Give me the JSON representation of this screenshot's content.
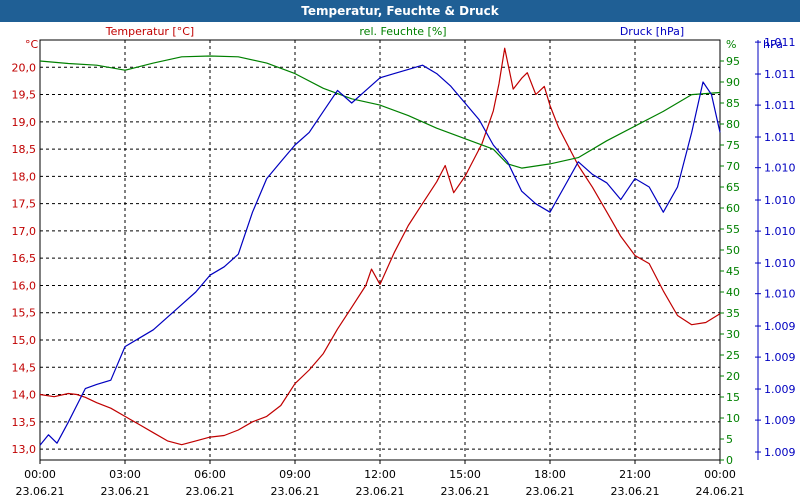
{
  "window": {
    "title": "Temperatur, Feuchte & Druck"
  },
  "colors": {
    "temperature": "#c00000",
    "humidity": "#008000",
    "pressure": "#0000c0",
    "grid": "#000000"
  },
  "chart_data": {
    "type": "line",
    "title": "Temperatur, Feuchte & Druck",
    "legend_position": "top",
    "x_ticks": [
      {
        "time": "00:00",
        "date": "23.06.21"
      },
      {
        "time": "03:00",
        "date": "23.06.21"
      },
      {
        "time": "06:00",
        "date": "23.06.21"
      },
      {
        "time": "09:00",
        "date": "23.06.21"
      },
      {
        "time": "12:00",
        "date": "23.06.21"
      },
      {
        "time": "15:00",
        "date": "23.06.21"
      },
      {
        "time": "18:00",
        "date": "23.06.21"
      },
      {
        "time": "21:00",
        "date": "23.06.21"
      },
      {
        "time": "00:00",
        "date": "24.06.21"
      }
    ],
    "x_range_hours": [
      0,
      24
    ],
    "axes": {
      "temperature": {
        "label": "Temperatur [°C]",
        "unit": "°C",
        "range": [
          12.8,
          20.5
        ],
        "ticks": [
          "13,0",
          "13,5",
          "14,0",
          "14,5",
          "15,0",
          "15,5",
          "16,0",
          "16,5",
          "17,0",
          "17,5",
          "18,0",
          "18,5",
          "19,0",
          "19,5",
          "20,0"
        ],
        "tick_values": [
          13.0,
          13.5,
          14.0,
          14.5,
          15.0,
          15.5,
          16.0,
          16.5,
          17.0,
          17.5,
          18.0,
          18.5,
          19.0,
          19.5,
          20.0
        ]
      },
      "humidity": {
        "label": "rel. Feuchte [%]",
        "unit": "%",
        "range": [
          0,
          100
        ],
        "ticks": [
          "0",
          "5",
          "10",
          "15",
          "20",
          "25",
          "30",
          "35",
          "40",
          "45",
          "50",
          "55",
          "60",
          "65",
          "70",
          "75",
          "80",
          "85",
          "90",
          "95"
        ],
        "tick_values": [
          0,
          5,
          10,
          15,
          20,
          25,
          30,
          35,
          40,
          45,
          50,
          55,
          60,
          65,
          70,
          75,
          80,
          85,
          90,
          95
        ]
      },
      "pressure": {
        "label": "Druck [hPa]",
        "unit": "hPa",
        "range": [
          0,
          100
        ],
        "ticks": [
          "1.009",
          "1.009",
          "1.009",
          "1.009",
          "1.009",
          "1.010",
          "1.010",
          "1.010",
          "1.010",
          "1.010",
          "1.011",
          "1.011",
          "1.011",
          "1.011"
        ],
        "tick_positions": [
          1.9,
          9.5,
          16.9,
          24.5,
          31.9,
          39.6,
          46.9,
          54.5,
          61.9,
          69.6,
          76.9,
          84.5,
          91.9,
          99.5
        ]
      }
    },
    "series": [
      {
        "name": "Temperatur [°C]",
        "axis": "temperature",
        "color": "#c00000",
        "points": [
          [
            0,
            14.0
          ],
          [
            0.5,
            13.96
          ],
          [
            1,
            14.02
          ],
          [
            1.3,
            14.0
          ],
          [
            1.6,
            13.95
          ],
          [
            2,
            13.85
          ],
          [
            2.5,
            13.75
          ],
          [
            3,
            13.6
          ],
          [
            3.5,
            13.45
          ],
          [
            4,
            13.3
          ],
          [
            4.5,
            13.15
          ],
          [
            5,
            13.08
          ],
          [
            5.5,
            13.15
          ],
          [
            6,
            13.22
          ],
          [
            6.5,
            13.25
          ],
          [
            7,
            13.35
          ],
          [
            7.5,
            13.5
          ],
          [
            8,
            13.6
          ],
          [
            8.5,
            13.8
          ],
          [
            9,
            14.2
          ],
          [
            9.5,
            14.45
          ],
          [
            10,
            14.75
          ],
          [
            10.5,
            15.2
          ],
          [
            11,
            15.6
          ],
          [
            11.5,
            16.0
          ],
          [
            11.7,
            16.3
          ],
          [
            12,
            16.02
          ],
          [
            12.5,
            16.6
          ],
          [
            13,
            17.1
          ],
          [
            13.5,
            17.5
          ],
          [
            14,
            17.9
          ],
          [
            14.3,
            18.2
          ],
          [
            14.6,
            17.7
          ],
          [
            15,
            18.0
          ],
          [
            15.3,
            18.3
          ],
          [
            15.6,
            18.6
          ],
          [
            16,
            19.2
          ],
          [
            16.2,
            19.7
          ],
          [
            16.4,
            20.35
          ],
          [
            16.7,
            19.6
          ],
          [
            17,
            19.8
          ],
          [
            17.2,
            19.9
          ],
          [
            17.5,
            19.5
          ],
          [
            17.8,
            19.65
          ],
          [
            18,
            19.3
          ],
          [
            18.3,
            18.9
          ],
          [
            18.7,
            18.5
          ],
          [
            19,
            18.2
          ],
          [
            19.5,
            17.8
          ],
          [
            20,
            17.35
          ],
          [
            20.5,
            16.9
          ],
          [
            21,
            16.55
          ],
          [
            21.5,
            16.4
          ],
          [
            22,
            15.9
          ],
          [
            22.5,
            15.45
          ],
          [
            23,
            15.28
          ],
          [
            23.5,
            15.32
          ],
          [
            24,
            15.48
          ]
        ]
      },
      {
        "name": "rel. Feuchte [%]",
        "axis": "humidity",
        "color": "#008000",
        "points": [
          [
            0,
            95
          ],
          [
            1,
            94.4
          ],
          [
            2,
            94
          ],
          [
            3,
            92.8
          ],
          [
            4,
            94.5
          ],
          [
            5,
            96
          ],
          [
            6,
            96.2
          ],
          [
            7,
            96
          ],
          [
            8,
            94.5
          ],
          [
            9,
            92
          ],
          [
            10,
            88.5
          ],
          [
            11,
            86
          ],
          [
            12,
            84.5
          ],
          [
            13,
            82
          ],
          [
            14,
            79
          ],
          [
            15,
            76.5
          ],
          [
            16,
            74
          ],
          [
            16.5,
            70.5
          ],
          [
            17,
            69.5
          ],
          [
            18,
            70.5
          ],
          [
            19,
            72
          ],
          [
            20,
            76
          ],
          [
            21,
            79.5
          ],
          [
            22,
            83
          ],
          [
            23,
            87
          ],
          [
            24,
            87.5
          ]
        ]
      },
      {
        "name": "Druck [hPa]",
        "axis": "pressure",
        "color": "#0000c0",
        "points": [
          [
            0,
            3.5
          ],
          [
            0.3,
            6
          ],
          [
            0.6,
            4
          ],
          [
            1,
            9
          ],
          [
            1.3,
            13
          ],
          [
            1.6,
            17
          ],
          [
            2,
            18
          ],
          [
            2.5,
            19
          ],
          [
            3,
            27
          ],
          [
            3.5,
            29
          ],
          [
            4,
            31
          ],
          [
            4.5,
            34
          ],
          [
            5,
            37
          ],
          [
            5.5,
            40
          ],
          [
            6,
            44
          ],
          [
            6.5,
            46
          ],
          [
            7,
            49
          ],
          [
            7.5,
            59
          ],
          [
            8,
            67
          ],
          [
            8.5,
            71
          ],
          [
            9,
            75
          ],
          [
            9.5,
            78
          ],
          [
            10,
            83
          ],
          [
            10.5,
            88
          ],
          [
            11,
            85
          ],
          [
            11.5,
            88
          ],
          [
            12,
            91
          ],
          [
            12.5,
            92
          ],
          [
            13,
            93
          ],
          [
            13.5,
            94
          ],
          [
            14,
            92
          ],
          [
            14.5,
            89
          ],
          [
            15,
            85
          ],
          [
            15.5,
            81
          ],
          [
            16,
            75
          ],
          [
            16.5,
            71
          ],
          [
            17,
            64
          ],
          [
            17.5,
            61
          ],
          [
            18,
            59
          ],
          [
            18.5,
            65
          ],
          [
            19,
            71
          ],
          [
            19.5,
            68
          ],
          [
            20,
            66
          ],
          [
            20.5,
            62
          ],
          [
            21,
            67
          ],
          [
            21.5,
            65
          ],
          [
            22,
            59
          ],
          [
            22.5,
            65
          ],
          [
            23,
            78
          ],
          [
            23.4,
            90
          ],
          [
            23.7,
            87
          ],
          [
            24,
            78
          ]
        ]
      }
    ]
  }
}
